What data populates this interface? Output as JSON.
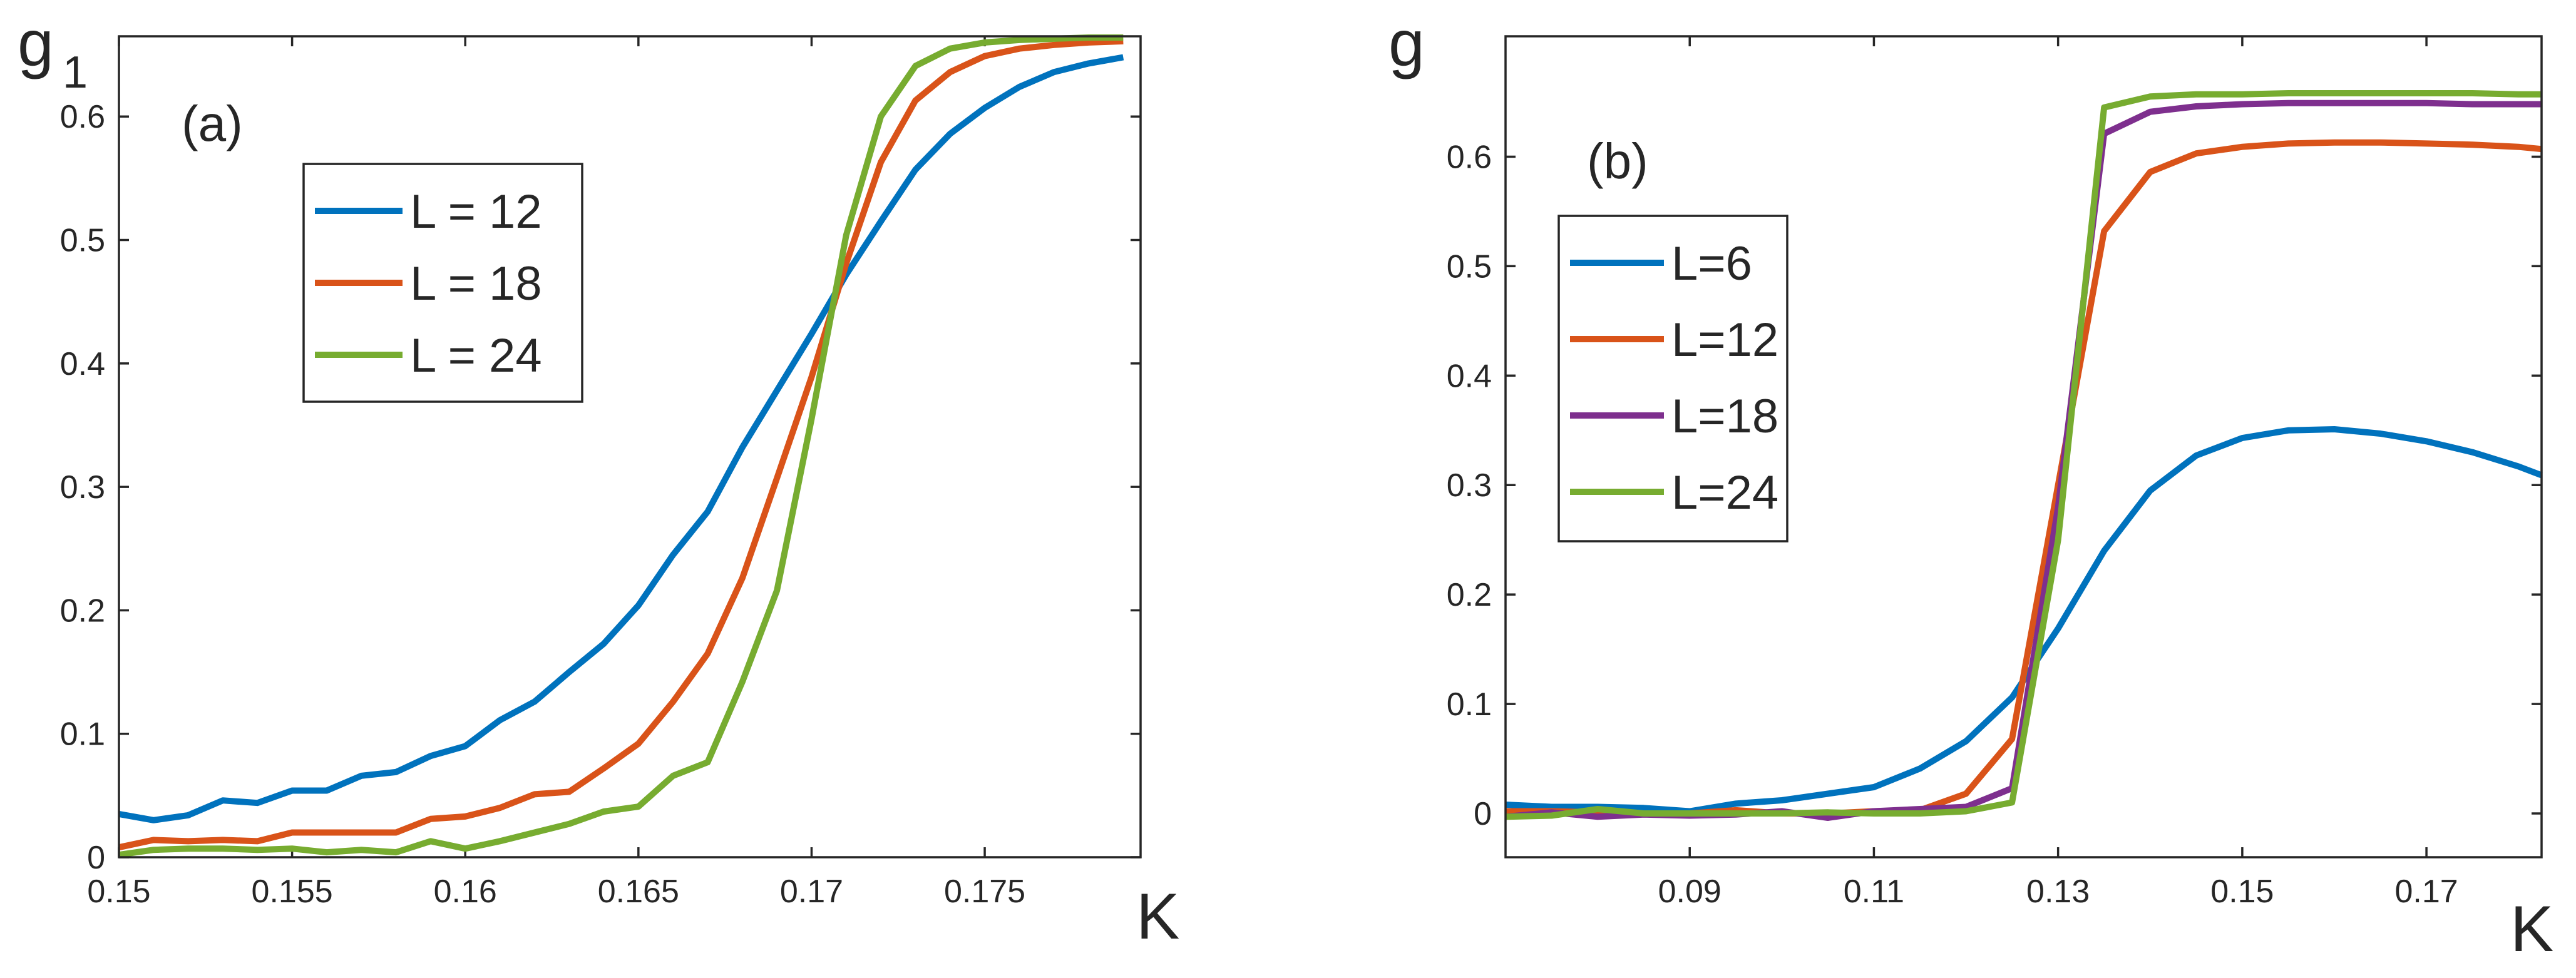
{
  "chart_data": [
    {
      "type": "line",
      "panel_label": "(a)",
      "ylabel": "g",
      "ylabel_sub": "1",
      "xlabel": "K",
      "xlim": [
        0.15,
        0.1795
      ],
      "ylim": [
        0,
        0.665
      ],
      "xticks": [
        0.15,
        0.155,
        0.16,
        0.165,
        0.17,
        0.175
      ],
      "xtick_labels": [
        "0.15",
        "0.155",
        "0.16",
        "0.165",
        "0.17",
        "0.175"
      ],
      "yticks": [
        0,
        0.1,
        0.2,
        0.3,
        0.4,
        0.5,
        0.6
      ],
      "ytick_labels": [
        "0",
        "0.1",
        "0.2",
        "0.3",
        "0.4",
        "0.5",
        "0.6"
      ],
      "grid": false,
      "legend_position": "upper-left",
      "series": [
        {
          "name": "L = 12",
          "color": "#0072BD",
          "x": [
            0.15,
            0.151,
            0.152,
            0.153,
            0.154,
            0.155,
            0.156,
            0.157,
            0.158,
            0.159,
            0.16,
            0.161,
            0.162,
            0.163,
            0.164,
            0.165,
            0.166,
            0.167,
            0.168,
            0.169,
            0.17,
            0.171,
            0.172,
            0.173,
            0.174,
            0.175,
            0.176,
            0.177,
            0.178,
            0.179
          ],
          "y": [
            0.035,
            0.03,
            0.034,
            0.046,
            0.044,
            0.054,
            0.054,
            0.066,
            0.069,
            0.082,
            0.09,
            0.111,
            0.126,
            0.15,
            0.173,
            0.204,
            0.245,
            0.28,
            0.332,
            0.378,
            0.424,
            0.472,
            0.515,
            0.557,
            0.586,
            0.607,
            0.624,
            0.636,
            0.643,
            0.648
          ]
        },
        {
          "name": "L = 18",
          "color": "#D95319",
          "x": [
            0.15,
            0.151,
            0.152,
            0.153,
            0.154,
            0.155,
            0.156,
            0.157,
            0.158,
            0.159,
            0.16,
            0.161,
            0.162,
            0.163,
            0.164,
            0.165,
            0.166,
            0.167,
            0.168,
            0.169,
            0.17,
            0.171,
            0.172,
            0.173,
            0.174,
            0.175,
            0.176,
            0.177,
            0.178,
            0.179
          ],
          "y": [
            0.008,
            0.014,
            0.013,
            0.014,
            0.013,
            0.02,
            0.02,
            0.02,
            0.02,
            0.031,
            0.033,
            0.04,
            0.051,
            0.053,
            0.072,
            0.092,
            0.126,
            0.165,
            0.226,
            0.307,
            0.389,
            0.481,
            0.563,
            0.613,
            0.636,
            0.649,
            0.655,
            0.658,
            0.66,
            0.661
          ]
        },
        {
          "name": "L = 24",
          "color": "#77AC30",
          "x": [
            0.15,
            0.151,
            0.152,
            0.153,
            0.154,
            0.155,
            0.156,
            0.157,
            0.158,
            0.159,
            0.16,
            0.161,
            0.162,
            0.163,
            0.164,
            0.165,
            0.166,
            0.167,
            0.168,
            0.169,
            0.17,
            0.171,
            0.172,
            0.173,
            0.174,
            0.175,
            0.176,
            0.177,
            0.178,
            0.179
          ],
          "y": [
            0.002,
            0.006,
            0.007,
            0.007,
            0.006,
            0.007,
            0.004,
            0.006,
            0.004,
            0.013,
            0.007,
            0.013,
            0.02,
            0.027,
            0.037,
            0.041,
            0.066,
            0.077,
            0.142,
            0.216,
            0.355,
            0.504,
            0.6,
            0.641,
            0.655,
            0.66,
            0.662,
            0.663,
            0.664,
            0.664
          ]
        }
      ]
    },
    {
      "type": "line",
      "panel_label": "(b)",
      "ylabel": "g",
      "xlabel": "K",
      "xlim": [
        0.07,
        0.1825
      ],
      "ylim": [
        -0.04,
        0.71
      ],
      "xticks": [
        0.09,
        0.11,
        0.13,
        0.15,
        0.17
      ],
      "xtick_labels": [
        "0.09",
        "0.11",
        "0.13",
        "0.15",
        "0.17"
      ],
      "yticks": [
        0,
        0.1,
        0.2,
        0.3,
        0.4,
        0.5,
        0.6
      ],
      "ytick_labels": [
        "0",
        "0.1",
        "0.2",
        "0.3",
        "0.4",
        "0.5",
        "0.6"
      ],
      "grid": false,
      "legend_position": "middle-left",
      "series": [
        {
          "name": "L=6",
          "color": "#0072BD",
          "x": [
            0.07,
            0.075,
            0.08,
            0.085,
            0.09,
            0.095,
            0.1,
            0.105,
            0.11,
            0.115,
            0.12,
            0.125,
            0.13,
            0.135,
            0.14,
            0.145,
            0.15,
            0.155,
            0.16,
            0.165,
            0.17,
            0.175,
            0.18,
            0.1825
          ],
          "y": [
            0.008,
            0.006,
            0.006,
            0.005,
            0.002,
            0.009,
            0.012,
            0.018,
            0.024,
            0.041,
            0.066,
            0.106,
            0.169,
            0.24,
            0.295,
            0.327,
            0.343,
            0.35,
            0.351,
            0.347,
            0.34,
            0.33,
            0.317,
            0.309
          ]
        },
        {
          "name": "L=12",
          "color": "#D95319",
          "x": [
            0.07,
            0.075,
            0.08,
            0.085,
            0.09,
            0.095,
            0.1,
            0.105,
            0.11,
            0.115,
            0.12,
            0.125,
            0.13,
            0.135,
            0.14,
            0.145,
            0.15,
            0.155,
            0.16,
            0.165,
            0.17,
            0.175,
            0.18,
            0.1825
          ],
          "y": [
            0.002,
            0.002,
            0.001,
            0.0,
            0.0,
            0.003,
            0.0,
            0.0,
            0.002,
            0.003,
            0.018,
            0.068,
            0.3,
            0.532,
            0.586,
            0.603,
            0.609,
            0.612,
            0.613,
            0.613,
            0.612,
            0.611,
            0.609,
            0.607
          ]
        },
        {
          "name": "L=18",
          "color": "#7E2F8E",
          "x": [
            0.07,
            0.075,
            0.08,
            0.085,
            0.09,
            0.095,
            0.1,
            0.105,
            0.11,
            0.115,
            0.12,
            0.125,
            0.13,
            0.135,
            0.14,
            0.145,
            0.15,
            0.155,
            0.16,
            0.165,
            0.17,
            0.175,
            0.18,
            0.1825
          ],
          "y": [
            -0.003,
            0.001,
            -0.003,
            -0.001,
            -0.002,
            -0.001,
            0.002,
            -0.004,
            0.002,
            0.004,
            0.006,
            0.023,
            0.28,
            0.621,
            0.641,
            0.646,
            0.648,
            0.649,
            0.649,
            0.649,
            0.649,
            0.648,
            0.648,
            0.648
          ]
        },
        {
          "name": "L=24",
          "color": "#77AC30",
          "x": [
            0.07,
            0.075,
            0.08,
            0.085,
            0.09,
            0.095,
            0.1,
            0.105,
            0.11,
            0.115,
            0.12,
            0.125,
            0.13,
            0.135,
            0.14,
            0.145,
            0.15,
            0.155,
            0.16,
            0.165,
            0.17,
            0.175,
            0.18,
            0.1825
          ],
          "y": [
            -0.003,
            -0.002,
            0.004,
            0.0,
            0.0,
            0.0,
            0.0,
            0.001,
            0.0,
            0.0,
            0.002,
            0.01,
            0.25,
            0.645,
            0.655,
            0.657,
            0.657,
            0.658,
            0.658,
            0.658,
            0.658,
            0.658,
            0.657,
            0.657
          ]
        }
      ]
    }
  ]
}
